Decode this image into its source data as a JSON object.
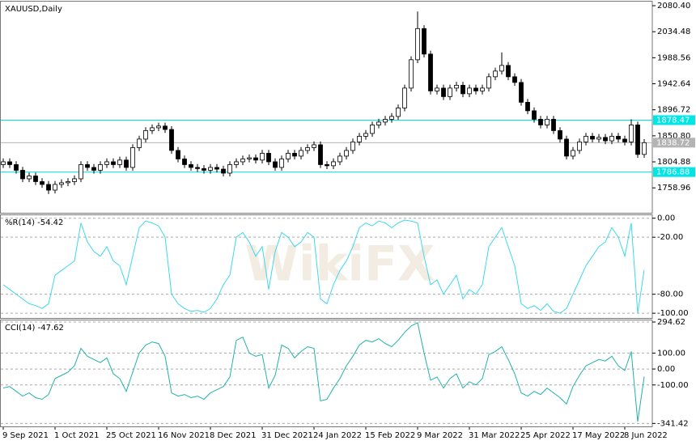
{
  "watermark": "WikiFX",
  "chart_data": [
    {
      "type": "candlestick",
      "title": "XAUUSD,Daily",
      "categories": [
        "9 Sep 2021",
        null,
        null,
        null,
        null,
        null,
        null,
        null,
        "1 Oct 2021",
        null,
        null,
        null,
        null,
        null,
        null,
        null,
        "25 Oct 2021",
        null,
        null,
        null,
        null,
        null,
        null,
        null,
        "16 Nov 2021",
        null,
        null,
        null,
        null,
        null,
        null,
        null,
        "8 Dec 2021",
        null,
        null,
        null,
        null,
        null,
        null,
        null,
        "31 Dec 2021",
        null,
        null,
        null,
        null,
        null,
        null,
        null,
        "24 Jan 2022",
        null,
        null,
        null,
        null,
        null,
        null,
        null,
        "15 Feb 2022",
        null,
        null,
        null,
        null,
        null,
        null,
        null,
        "9 Mar 2022",
        null,
        null,
        null,
        null,
        null,
        null,
        null,
        "31 Mar 2022",
        null,
        null,
        null,
        null,
        null,
        null,
        null,
        "25 Apr 2022",
        null,
        null,
        null,
        null,
        null,
        null,
        null,
        "17 May 2022",
        null,
        null,
        null,
        null,
        null,
        null,
        null,
        "8 Jun 2022",
        null,
        null,
        null
      ],
      "open": [
        1800,
        1805,
        1800,
        1790,
        1775,
        1780,
        1770,
        1765,
        1755,
        1765,
        1768,
        1770,
        1775,
        1800,
        1795,
        1790,
        1800,
        1805,
        1800,
        1808,
        1795,
        1830,
        1845,
        1860,
        1865,
        1868,
        1862,
        1825,
        1810,
        1800,
        1795,
        1793,
        1790,
        1795,
        1792,
        1785,
        1800,
        1805,
        1810,
        1812,
        1808,
        1820,
        1805,
        1795,
        1810,
        1820,
        1815,
        1825,
        1830,
        1835,
        1800,
        1798,
        1805,
        1815,
        1825,
        1840,
        1850,
        1855,
        1870,
        1875,
        1880,
        1885,
        1900,
        1935,
        1985,
        2040,
        1995,
        1930,
        1935,
        1920,
        1935,
        1940,
        1925,
        1935,
        1930,
        1935,
        1955,
        1965,
        1975,
        1955,
        1945,
        1910,
        1895,
        1880,
        1870,
        1880,
        1860,
        1845,
        1815,
        1825,
        1840,
        1850,
        1845,
        1848,
        1842,
        1850,
        1845,
        1840,
        1870,
        1818
      ],
      "high": [
        1811,
        1811,
        1806,
        1796,
        1786,
        1786,
        1776,
        1771,
        1771,
        1774,
        1776,
        1781,
        1806,
        1806,
        1801,
        1806,
        1811,
        1811,
        1814,
        1814,
        1836,
        1851,
        1866,
        1871,
        1874,
        1874,
        1868,
        1831,
        1816,
        1806,
        1801,
        1799,
        1801,
        1801,
        1798,
        1806,
        1811,
        1816,
        1818,
        1818,
        1826,
        1826,
        1811,
        1816,
        1826,
        1826,
        1831,
        1836,
        1841,
        1841,
        1806,
        1811,
        1821,
        1831,
        1846,
        1856,
        1861,
        1876,
        1881,
        1886,
        1891,
        1906,
        1941,
        1991,
        2070,
        2046,
        2001,
        1941,
        1941,
        1941,
        1946,
        1946,
        1941,
        1941,
        1941,
        1961,
        1971,
        1998,
        1981,
        1961,
        1951,
        1916,
        1901,
        1886,
        1886,
        1886,
        1866,
        1851,
        1831,
        1846,
        1856,
        1856,
        1854,
        1854,
        1856,
        1856,
        1851,
        1880,
        1876,
        1845
      ],
      "low": [
        1794,
        1794,
        1784,
        1769,
        1769,
        1764,
        1759,
        1748,
        1749,
        1759,
        1762,
        1764,
        1769,
        1789,
        1784,
        1784,
        1794,
        1794,
        1794,
        1789,
        1789,
        1824,
        1839,
        1854,
        1859,
        1856,
        1819,
        1804,
        1794,
        1789,
        1787,
        1784,
        1784,
        1786,
        1779,
        1779,
        1794,
        1799,
        1804,
        1802,
        1802,
        1799,
        1789,
        1789,
        1804,
        1809,
        1809,
        1819,
        1824,
        1794,
        1792,
        1792,
        1799,
        1809,
        1819,
        1834,
        1844,
        1849,
        1864,
        1869,
        1874,
        1879,
        1894,
        1929,
        1979,
        1989,
        1924,
        1924,
        1914,
        1914,
        1929,
        1919,
        1919,
        1924,
        1924,
        1929,
        1949,
        1959,
        1949,
        1939,
        1904,
        1889,
        1874,
        1864,
        1864,
        1854,
        1839,
        1809,
        1809,
        1819,
        1834,
        1839,
        1839,
        1836,
        1836,
        1839,
        1834,
        1834,
        1812,
        1812
      ],
      "close": [
        1805,
        1800,
        1790,
        1775,
        1780,
        1770,
        1765,
        1755,
        1765,
        1768,
        1770,
        1775,
        1800,
        1795,
        1790,
        1800,
        1805,
        1800,
        1808,
        1795,
        1830,
        1845,
        1860,
        1865,
        1868,
        1862,
        1825,
        1810,
        1800,
        1795,
        1793,
        1790,
        1795,
        1792,
        1785,
        1800,
        1805,
        1810,
        1812,
        1808,
        1820,
        1805,
        1795,
        1810,
        1820,
        1815,
        1825,
        1830,
        1835,
        1800,
        1798,
        1805,
        1815,
        1825,
        1840,
        1850,
        1855,
        1870,
        1875,
        1880,
        1885,
        1900,
        1935,
        1985,
        2040,
        1995,
        1930,
        1935,
        1920,
        1935,
        1940,
        1925,
        1935,
        1930,
        1935,
        1955,
        1965,
        1975,
        1955,
        1945,
        1910,
        1895,
        1880,
        1870,
        1880,
        1860,
        1845,
        1815,
        1825,
        1840,
        1850,
        1845,
        1848,
        1842,
        1850,
        1845,
        1840,
        1870,
        1818,
        1838.72
      ],
      "up_color": "#ffffff",
      "down_color": "#000000",
      "ylim": [
        1715,
        2089
      ],
      "yticks": [
        {
          "value": 2080.4,
          "label": "2080.40"
        },
        2034.48,
        1988.56,
        1942.64,
        1896.72,
        {
          "value": 1850.8,
          "label": "1850.80"
        },
        1804.88,
        1758.96
      ],
      "hlines": [
        {
          "value": 1878.47,
          "color": "#00e6e6"
        },
        {
          "value": 1786.88,
          "color": "#00e6e6"
        }
      ],
      "last_price": {
        "value": 1838.72,
        "color": "#b4b4b4"
      }
    },
    {
      "type": "line",
      "title": "%R(14) -54.42",
      "color": "#3cd8ee",
      "values": [
        -70,
        -75,
        -80,
        -85,
        -90,
        -92,
        -95,
        -90,
        -60,
        -55,
        -50,
        -45,
        -5,
        -25,
        -35,
        -40,
        -30,
        -45,
        -50,
        -70,
        -40,
        -10,
        -3,
        -5,
        -8,
        -20,
        -80,
        -90,
        -95,
        -98,
        -97,
        -99,
        -95,
        -85,
        -70,
        -60,
        -20,
        -15,
        -25,
        -40,
        -30,
        -75,
        -35,
        -15,
        -20,
        -30,
        -25,
        -15,
        -20,
        -85,
        -90,
        -70,
        -55,
        -45,
        -30,
        -10,
        -5,
        -8,
        -3,
        -5,
        -10,
        -5,
        -2,
        -3,
        -5,
        -40,
        -70,
        -65,
        -80,
        -70,
        -60,
        -85,
        -75,
        -80,
        -70,
        -30,
        -20,
        -10,
        -30,
        -50,
        -90,
        -95,
        -92,
        -97,
        -90,
        -98,
        -100,
        -95,
        -80,
        -65,
        -50,
        -40,
        -30,
        -25,
        -10,
        -20,
        -40,
        -5,
        -100,
        -54.42
      ],
      "ylim": [
        -105,
        4
      ],
      "yticks": [
        {
          "value": 0,
          "label": "0.00"
        },
        {
          "value": -20,
          "label": "-20.00"
        },
        {
          "value": -80,
          "label": "-80.00"
        },
        {
          "value": -100,
          "label": "-100.00"
        }
      ]
    },
    {
      "type": "line",
      "title": "CCI(14) -47.62",
      "color": "#20b2aa",
      "values": [
        -120,
        -110,
        -140,
        -170,
        -150,
        -180,
        -190,
        -160,
        -60,
        -40,
        -20,
        20,
        130,
        80,
        60,
        40,
        70,
        -30,
        -60,
        -140,
        -20,
        100,
        150,
        170,
        160,
        80,
        -150,
        -170,
        -160,
        -180,
        -170,
        -190,
        -150,
        -130,
        -110,
        -50,
        180,
        200,
        100,
        80,
        90,
        -120,
        -40,
        150,
        130,
        70,
        110,
        140,
        130,
        -200,
        -190,
        -120,
        -60,
        20,
        80,
        150,
        180,
        170,
        190,
        160,
        140,
        180,
        230,
        270,
        290,
        100,
        -70,
        -50,
        -120,
        -60,
        -30,
        -120,
        -80,
        -100,
        -60,
        90,
        110,
        140,
        60,
        -30,
        -150,
        -170,
        -140,
        -160,
        -120,
        -150,
        -180,
        -220,
        -110,
        -40,
        20,
        40,
        60,
        50,
        80,
        20,
        -10,
        110,
        -330,
        -47.62
      ],
      "ylim": [
        -360,
        310
      ],
      "yticks": [
        294.62,
        {
          "value": 100,
          "label": "100.00"
        },
        {
          "value": 0,
          "label": "0.00"
        },
        {
          "value": -100,
          "label": "-100.00"
        },
        -341.42
      ]
    }
  ]
}
